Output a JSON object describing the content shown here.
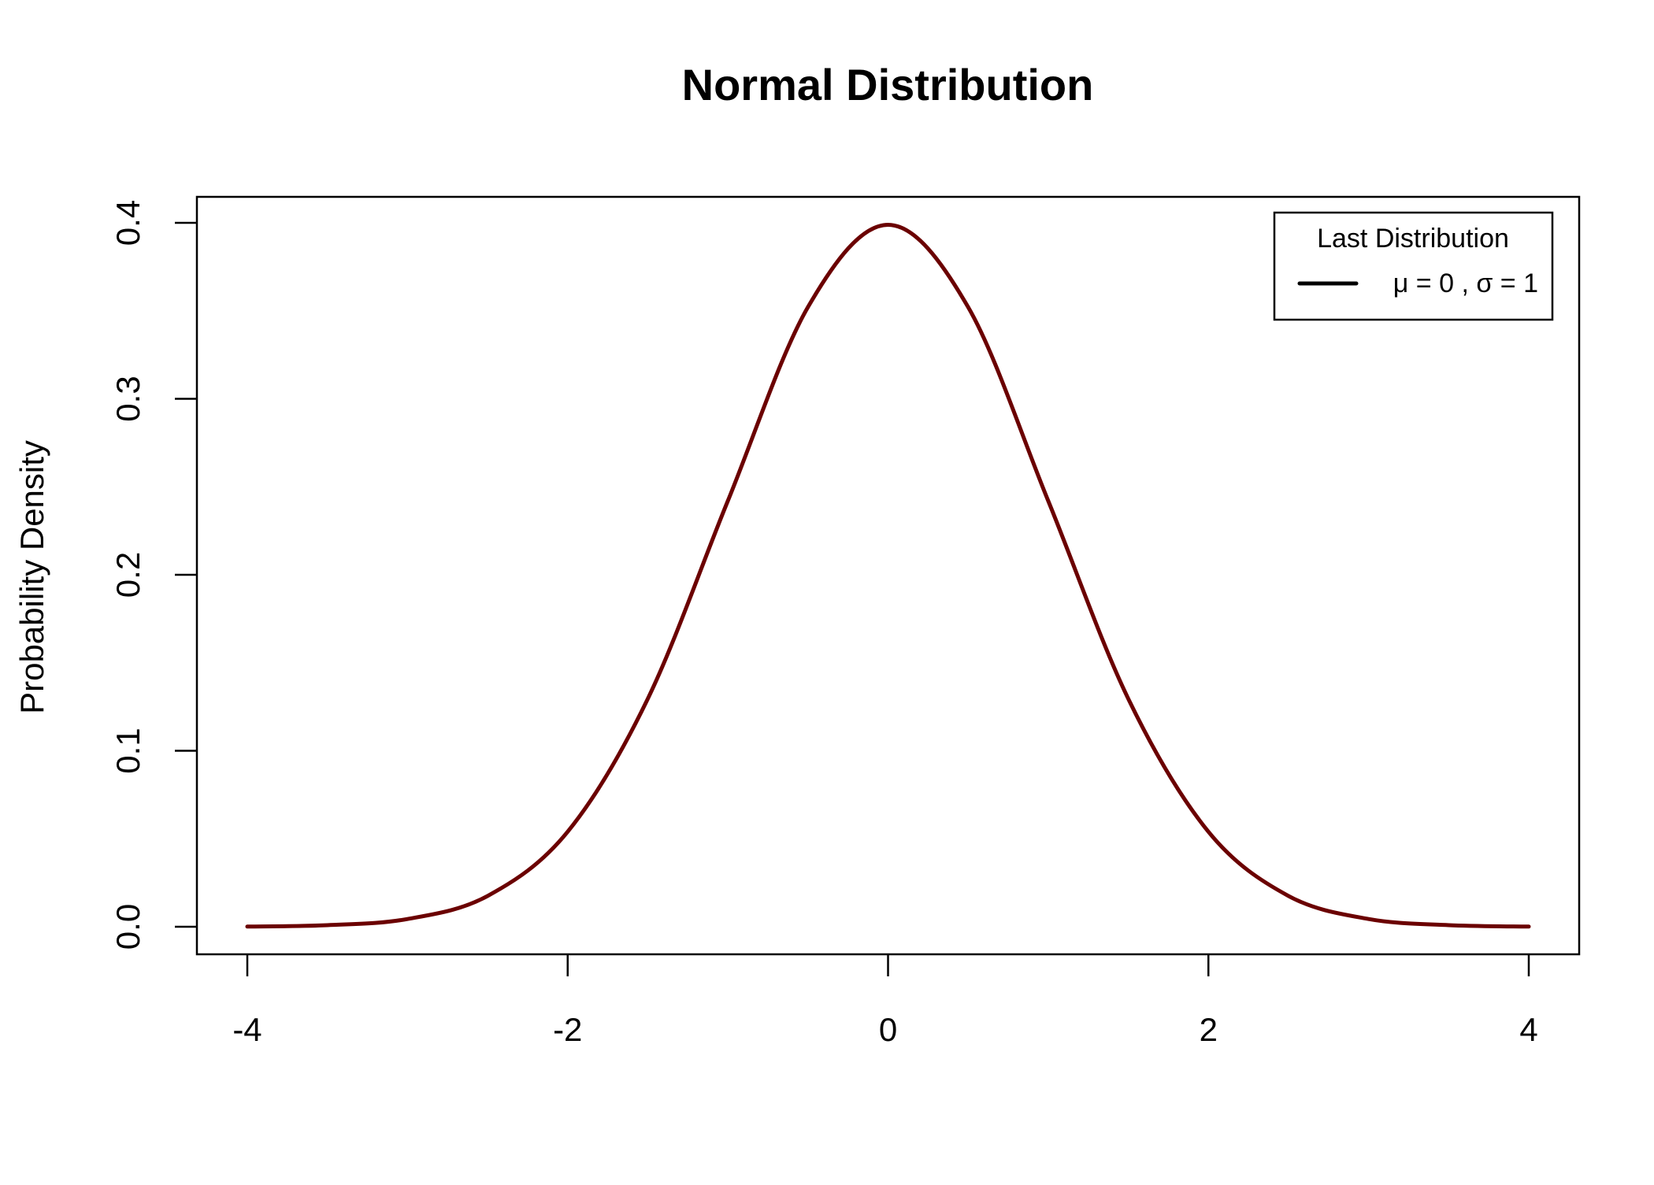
{
  "chart_data": {
    "type": "line",
    "title": "Normal Distribution",
    "xlabel": "",
    "ylabel": "Probability Density",
    "xlim": [
      -4,
      4
    ],
    "ylim": [
      0,
      0.4
    ],
    "x_ticks": [
      -4,
      -2,
      0,
      2,
      4
    ],
    "x_tick_labels": [
      "-4",
      "-2",
      "0",
      "2",
      "4"
    ],
    "y_ticks": [
      0,
      0.1,
      0.2,
      0.3,
      0.4
    ],
    "y_tick_labels": [
      "0.0",
      "0.1",
      "0.2",
      "0.3",
      "0.4"
    ],
    "grid": false,
    "legend": {
      "placement": "top-right",
      "title": "Last Distribution",
      "entries": [
        {
          "label": "μ = 0 , σ = 1",
          "color": "#000000"
        }
      ]
    },
    "series": [
      {
        "name": "μ = 0 , σ = 1",
        "color": "#6b0000",
        "x": [
          -4.0,
          -3.5,
          -3.0,
          -2.5,
          -2.0,
          -1.5,
          -1.0,
          -0.5,
          0.0,
          0.5,
          1.0,
          1.5,
          2.0,
          2.5,
          3.0,
          3.5,
          4.0
        ],
        "y": [
          0.0001,
          0.0009,
          0.0044,
          0.0175,
          0.054,
          0.1295,
          0.242,
          0.3521,
          0.3989,
          0.3521,
          0.242,
          0.1295,
          0.054,
          0.0175,
          0.0044,
          0.0009,
          0.0001
        ]
      }
    ]
  }
}
